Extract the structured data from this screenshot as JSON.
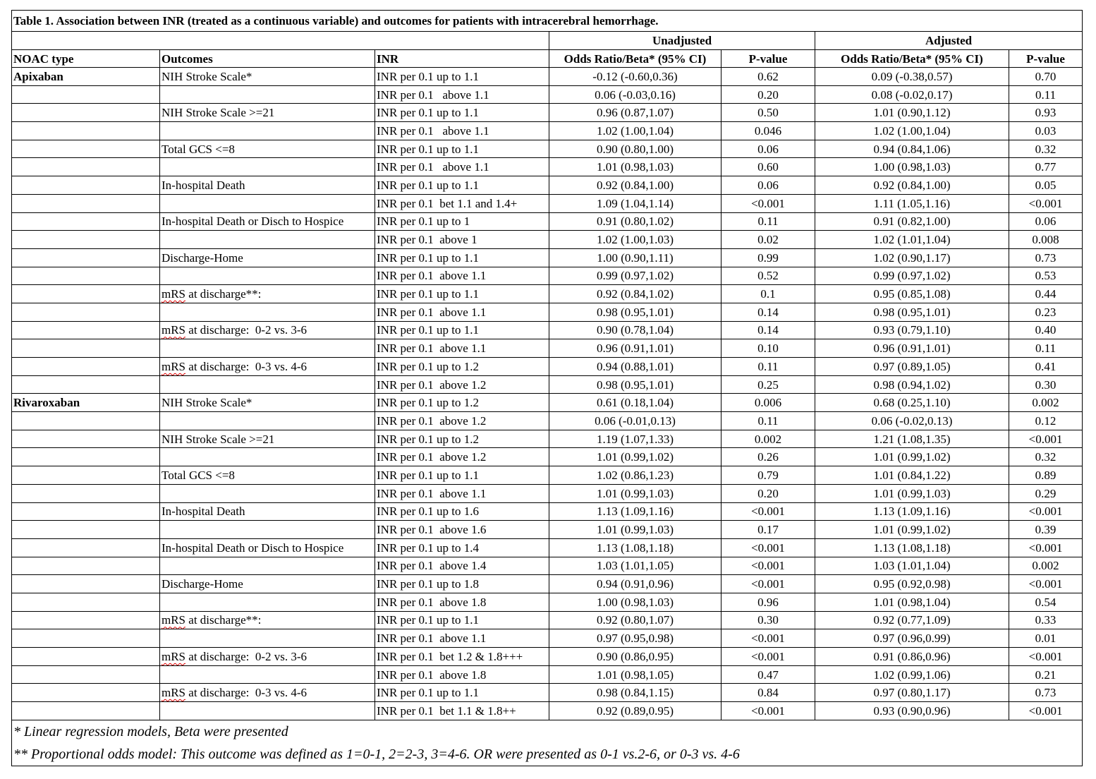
{
  "title": "Table 1. Association between INR (treated as a continuous variable) and outcomes for patients with intracerebral hemorrhage.",
  "group_headers": {
    "unadjusted": "Unadjusted",
    "adjusted": "Adjusted"
  },
  "columns": [
    "NOAC type",
    "Outcomes",
    "INR",
    "Odds Ratio/Beta* (95% CI)",
    "P-value",
    "Odds Ratio/Beta* (95% CI)",
    "P-value"
  ],
  "rows": [
    [
      "Apixaban",
      "NIH Stroke Scale*",
      "INR per 0.1 up to 1.1",
      "-0.12 (-0.60,0.36)",
      "0.62",
      "0.09 (-0.38,0.57)",
      "0.70"
    ],
    [
      "",
      "",
      "INR per 0.1   above 1.1",
      "0.06 (-0.03,0.16)",
      "0.20",
      "0.08 (-0.02,0.17)",
      "0.11"
    ],
    [
      "",
      "NIH Stroke Scale >=21",
      "INR per 0.1 up to 1.1",
      "0.96 (0.87,1.07)",
      "0.50",
      "1.01 (0.90,1.12)",
      "0.93"
    ],
    [
      "",
      "",
      "INR per 0.1   above 1.1",
      "1.02 (1.00,1.04)",
      "0.046",
      "1.02 (1.00,1.04)",
      "0.03"
    ],
    [
      "",
      "Total GCS <=8",
      "INR per 0.1 up to 1.1",
      "0.90 (0.80,1.00)",
      "0.06",
      "0.94 (0.84,1.06)",
      "0.32"
    ],
    [
      "",
      "",
      "INR per 0.1   above 1.1",
      "1.01 (0.98,1.03)",
      "0.60",
      "1.00 (0.98,1.03)",
      "0.77"
    ],
    [
      "",
      "In-hospital Death",
      "INR per 0.1 up to 1.1",
      "0.92 (0.84,1.00)",
      "0.06",
      "0.92 (0.84,1.00)",
      "0.05"
    ],
    [
      "",
      "",
      "INR per 0.1  bet 1.1 and 1.4+",
      "1.09 (1.04,1.14)",
      "<0.001",
      "1.11 (1.05,1.16)",
      "<0.001"
    ],
    [
      "",
      "In-hospital Death or Disch to Hospice",
      "INR per 0.1 up to 1",
      "0.91 (0.80,1.02)",
      "0.11",
      "0.91 (0.82,1.00)",
      "0.06"
    ],
    [
      "",
      "",
      "INR per 0.1  above 1",
      "1.02 (1.00,1.03)",
      "0.02",
      "1.02 (1.01,1.04)",
      "0.008"
    ],
    [
      "",
      "Discharge-Home",
      "INR per 0.1 up to 1.1",
      "1.00 (0.90,1.11)",
      "0.99",
      "1.02 (0.90,1.17)",
      "0.73"
    ],
    [
      "",
      "",
      "INR per 0.1  above 1.1",
      "0.99 (0.97,1.02)",
      "0.52",
      "0.99 (0.97,1.02)",
      "0.53"
    ],
    [
      "",
      "mRS at discharge**:",
      "INR per 0.1 up to 1.1",
      "0.92 (0.84,1.02)",
      "0.1",
      "0.95 (0.85,1.08)",
      "0.44"
    ],
    [
      "",
      "",
      "INR per 0.1  above 1.1",
      "0.98 (0.95,1.01)",
      "0.14",
      "0.98 (0.95,1.01)",
      "0.23"
    ],
    [
      "",
      "mRS at discharge:  0-2 vs. 3-6",
      "INR per 0.1 up to 1.1",
      "0.90 (0.78,1.04)",
      "0.14",
      "0.93 (0.79,1.10)",
      "0.40"
    ],
    [
      "",
      "",
      "INR per 0.1  above 1.1",
      "0.96 (0.91,1.01)",
      "0.10",
      "0.96 (0.91,1.01)",
      "0.11"
    ],
    [
      "",
      "mRS at discharge:  0-3 vs. 4-6",
      "INR per 0.1 up to 1.2",
      "0.94 (0.88,1.01)",
      "0.11",
      "0.97 (0.89,1.05)",
      "0.41"
    ],
    [
      "",
      "",
      "INR per 0.1  above 1.2",
      "0.98 (0.95,1.01)",
      "0.25",
      "0.98 (0.94,1.02)",
      "0.30"
    ],
    [
      "Rivaroxaban",
      "NIH Stroke Scale*",
      "INR per 0.1 up to 1.2",
      "0.61 (0.18,1.04)",
      "0.006",
      "0.68 (0.25,1.10)",
      "0.002"
    ],
    [
      "",
      "",
      "INR per 0.1  above 1.2",
      "0.06 (-0.01,0.13)",
      "0.11",
      "0.06 (-0.02,0.13)",
      "0.12"
    ],
    [
      "",
      "NIH Stroke Scale >=21",
      "INR per 0.1 up to 1.2",
      "1.19 (1.07,1.33)",
      "0.002",
      "1.21 (1.08,1.35)",
      "<0.001"
    ],
    [
      "",
      "",
      "INR per 0.1  above 1.2",
      "1.01 (0.99,1.02)",
      "0.26",
      "1.01 (0.99,1.02)",
      "0.32"
    ],
    [
      "",
      "Total GCS <=8",
      "INR per 0.1 up to 1.1",
      "1.02 (0.86,1.23)",
      "0.79",
      "1.01 (0.84,1.22)",
      "0.89"
    ],
    [
      "",
      "",
      "INR per 0.1  above 1.1",
      "1.01 (0.99,1.03)",
      "0.20",
      "1.01 (0.99,1.03)",
      "0.29"
    ],
    [
      "",
      "In-hospital Death",
      "INR per 0.1 up to 1.6",
      "1.13 (1.09,1.16)",
      "<0.001",
      "1.13 (1.09,1.16)",
      "<0.001"
    ],
    [
      "",
      "",
      "INR per 0.1  above 1.6",
      "1.01 (0.99,1.03)",
      "0.17",
      "1.01 (0.99,1.02)",
      "0.39"
    ],
    [
      "",
      "In-hospital Death or Disch to Hospice",
      "INR per 0.1 up to 1.4",
      "1.13 (1.08,1.18)",
      "<0.001",
      "1.13 (1.08,1.18)",
      "<0.001"
    ],
    [
      "",
      "",
      "INR per 0.1  above 1.4",
      "1.03 (1.01,1.05)",
      "<0.001",
      "1.03 (1.01,1.04)",
      "0.002"
    ],
    [
      "",
      "Discharge-Home",
      "INR per 0.1 up to 1.8",
      "0.94 (0.91,0.96)",
      "<0.001",
      "0.95 (0.92,0.98)",
      "<0.001"
    ],
    [
      "",
      "",
      "INR per 0.1  above 1.8",
      "1.00 (0.98,1.03)",
      "0.96",
      "1.01 (0.98,1.04)",
      "0.54"
    ],
    [
      "",
      "mRS at discharge**:",
      "INR per 0.1 up to 1.1",
      "0.92 (0.80,1.07)",
      "0.30",
      "0.92 (0.77,1.09)",
      "0.33"
    ],
    [
      "",
      "",
      "INR per 0.1  above 1.1",
      "0.97 (0.95,0.98)",
      "<0.001",
      "0.97 (0.96,0.99)",
      "0.01"
    ],
    [
      "",
      "mRS at discharge:  0-2 vs. 3-6",
      "INR per 0.1  bet 1.2 & 1.8+++",
      "0.90 (0.86,0.95)",
      "<0.001",
      "0.91 (0.86,0.96)",
      "<0.001"
    ],
    [
      "",
      "",
      "INR per 0.1  above 1.8",
      "1.01 (0.98,1.05)",
      "0.47",
      "1.02 (0.99,1.06)",
      "0.21"
    ],
    [
      "",
      "mRS at discharge:  0-3 vs. 4-6",
      "INR per 0.1 up to 1.1",
      "0.98 (0.84,1.15)",
      "0.84",
      "0.97 (0.80,1.17)",
      "0.73"
    ],
    [
      "",
      "",
      "INR per 0.1  bet 1.1 & 1.8++",
      "0.92 (0.89,0.95)",
      "<0.001",
      "0.93 (0.90,0.96)",
      "<0.001"
    ]
  ],
  "footnotes": [
    "* Linear regression models, Beta were presented",
    "** Proportional odds model: This outcome was defined as 1=0-1, 2=2-3, 3=4-6. OR were presented as 0-1 vs.2-6, or 0-3 vs. 4-6"
  ]
}
